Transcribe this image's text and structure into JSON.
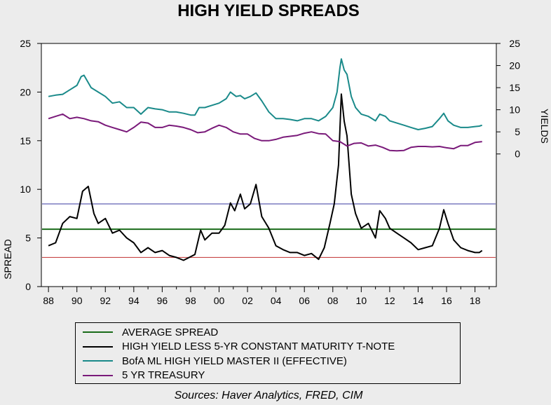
{
  "chart_data": {
    "type": "line",
    "title": "HIGH YIELD SPREADS",
    "source": "Sources:  Haver Analytics, FRED, CIM",
    "left_axis": {
      "label": "SPREAD",
      "range": [
        0,
        25
      ],
      "ticks": [
        "0",
        "5",
        "10",
        "15",
        "20",
        "25"
      ]
    },
    "right_axis": {
      "label": "YIELDS",
      "range": [
        -30,
        25
      ],
      "ticks": [
        "0",
        "5",
        "10",
        "15",
        "20",
        "25"
      ]
    },
    "x_axis": {
      "range": [
        1987.5,
        2019.5
      ],
      "ticks": [
        "88",
        "90",
        "92",
        "94",
        "96",
        "98",
        "00",
        "02",
        "04",
        "06",
        "08",
        "10",
        "12",
        "14",
        "16",
        "18"
      ]
    },
    "reference_lines": [
      {
        "name": "blue-line",
        "value": 8.5,
        "color": "#3a3aa0"
      },
      {
        "name": "average-spread",
        "value": 5.9,
        "color": "#1a6b1a"
      },
      {
        "name": "red-line",
        "value": 3.0,
        "color": "#c03030"
      }
    ],
    "series": [
      {
        "name": "HIGH YIELD LESS 5-YR CONSTANT MATURITY T-NOTE",
        "axis": "left",
        "color": "#000000",
        "x": [
          1988.0,
          1988.5,
          1989.0,
          1989.5,
          1990.0,
          1990.4,
          1990.8,
          1991.2,
          1991.5,
          1992.0,
          1992.5,
          1993.0,
          1993.5,
          1994.0,
          1994.5,
          1995.0,
          1995.5,
          1996.0,
          1996.5,
          1997.0,
          1997.5,
          1997.9,
          1998.3,
          1998.7,
          1999.0,
          1999.5,
          2000.0,
          2000.4,
          2000.8,
          2001.1,
          2001.5,
          2001.8,
          2002.2,
          2002.6,
          2003.0,
          2003.5,
          2004.0,
          2004.5,
          2005.0,
          2005.5,
          2006.0,
          2006.5,
          2007.0,
          2007.4,
          2007.8,
          2008.1,
          2008.4,
          2008.6,
          2008.8,
          2009.0,
          2009.3,
          2009.6,
          2010.0,
          2010.5,
          2011.0,
          2011.3,
          2011.7,
          2012.0,
          2012.5,
          2013.0,
          2013.5,
          2014.0,
          2014.5,
          2015.0,
          2015.5,
          2015.8,
          2016.1,
          2016.5,
          2017.0,
          2017.5,
          2018.0,
          2018.3,
          2018.5
        ],
        "y": [
          4.2,
          4.5,
          6.5,
          7.2,
          7.0,
          9.8,
          10.3,
          7.5,
          6.5,
          7.0,
          5.5,
          5.8,
          5.0,
          4.5,
          3.5,
          4.0,
          3.5,
          3.7,
          3.2,
          3.0,
          2.7,
          3.0,
          3.3,
          5.8,
          4.8,
          5.5,
          5.5,
          6.3,
          8.6,
          7.8,
          9.5,
          8.0,
          8.5,
          10.5,
          7.2,
          6.0,
          4.2,
          3.8,
          3.5,
          3.5,
          3.2,
          3.4,
          2.8,
          4.0,
          6.5,
          8.5,
          12.5,
          19.8,
          17.0,
          15.5,
          9.5,
          7.5,
          6.0,
          6.5,
          5.0,
          7.8,
          7.0,
          6.0,
          5.5,
          5.0,
          4.5,
          3.8,
          4.0,
          4.2,
          6.0,
          7.9,
          6.5,
          4.8,
          4.0,
          3.7,
          3.5,
          3.5,
          3.7
        ]
      },
      {
        "name": "BofA ML HIGH YIELD MASTER II (EFFECTIVE)",
        "axis": "right",
        "color": "#1a8a8a",
        "x": [
          1988.0,
          1988.5,
          1989.0,
          1989.5,
          1990.0,
          1990.3,
          1990.5,
          1991.0,
          1991.5,
          1992.0,
          1992.5,
          1993.0,
          1993.5,
          1994.0,
          1994.5,
          1995.0,
          1995.5,
          1996.0,
          1996.5,
          1997.0,
          1997.5,
          1998.0,
          1998.3,
          1998.6,
          1999.0,
          1999.5,
          2000.0,
          2000.5,
          2000.8,
          2001.2,
          2001.5,
          2001.8,
          2002.2,
          2002.6,
          2003.0,
          2003.5,
          2004.0,
          2004.5,
          2005.0,
          2005.5,
          2006.0,
          2006.5,
          2007.0,
          2007.5,
          2008.0,
          2008.3,
          2008.5,
          2008.6,
          2008.8,
          2009.0,
          2009.3,
          2009.6,
          2010.0,
          2010.5,
          2011.0,
          2011.3,
          2011.7,
          2012.0,
          2012.5,
          2013.0,
          2013.5,
          2014.0,
          2014.5,
          2015.0,
          2015.5,
          2015.8,
          2016.1,
          2016.5,
          2017.0,
          2017.5,
          2018.0,
          2018.3,
          2018.5
        ],
        "y": [
          13.0,
          13.3,
          13.5,
          14.5,
          15.5,
          17.5,
          17.8,
          15.0,
          14.0,
          13.0,
          11.5,
          11.8,
          10.5,
          10.5,
          9.0,
          10.5,
          10.2,
          10.0,
          9.5,
          9.5,
          9.2,
          8.8,
          8.8,
          10.5,
          10.5,
          11.0,
          11.5,
          12.5,
          14.0,
          13.0,
          13.2,
          12.5,
          13.0,
          13.8,
          12.0,
          9.5,
          8.0,
          8.0,
          7.8,
          7.5,
          8.0,
          8.0,
          7.5,
          8.5,
          10.5,
          14.0,
          19.5,
          21.5,
          19.0,
          18.0,
          13.0,
          10.5,
          9.0,
          8.5,
          7.5,
          9.0,
          8.5,
          7.5,
          7.0,
          6.5,
          6.0,
          5.5,
          5.8,
          6.2,
          8.0,
          9.2,
          7.5,
          6.5,
          6.0,
          6.0,
          6.2,
          6.3,
          6.5
        ]
      },
      {
        "name": "5 YR TREASURY",
        "axis": "right",
        "color": "#7a1a7a",
        "x": [
          1988.0,
          1988.5,
          1989.0,
          1989.5,
          1990.0,
          1990.5,
          1991.0,
          1991.5,
          1992.0,
          1992.5,
          1993.0,
          1993.5,
          1994.0,
          1994.5,
          1995.0,
          1995.5,
          1996.0,
          1996.5,
          1997.0,
          1997.5,
          1998.0,
          1998.5,
          1999.0,
          1999.5,
          2000.0,
          2000.5,
          2001.0,
          2001.5,
          2002.0,
          2002.5,
          2003.0,
          2003.5,
          2004.0,
          2004.5,
          2005.0,
          2005.5,
          2006.0,
          2006.5,
          2007.0,
          2007.5,
          2008.0,
          2008.5,
          2009.0,
          2009.5,
          2010.0,
          2010.5,
          2011.0,
          2011.5,
          2012.0,
          2012.5,
          2013.0,
          2013.5,
          2014.0,
          2014.5,
          2015.0,
          2015.5,
          2016.0,
          2016.5,
          2017.0,
          2017.5,
          2018.0,
          2018.5
        ],
        "y": [
          8.0,
          8.5,
          9.0,
          8.0,
          8.3,
          8.0,
          7.5,
          7.3,
          6.5,
          6.0,
          5.5,
          5.0,
          6.0,
          7.2,
          7.0,
          6.0,
          6.0,
          6.5,
          6.3,
          6.0,
          5.5,
          4.8,
          5.0,
          5.8,
          6.5,
          6.0,
          5.0,
          4.5,
          4.5,
          3.5,
          3.0,
          3.0,
          3.3,
          3.8,
          4.0,
          4.2,
          4.7,
          5.0,
          4.6,
          4.5,
          3.0,
          2.8,
          1.8,
          2.4,
          2.5,
          1.8,
          2.0,
          1.5,
          0.8,
          0.7,
          0.8,
          1.5,
          1.7,
          1.7,
          1.6,
          1.7,
          1.4,
          1.2,
          1.9,
          1.9,
          2.6,
          2.8
        ]
      }
    ],
    "legend": [
      {
        "label": "AVERAGE SPREAD",
        "color": "#1a6b1a"
      },
      {
        "label": "HIGH YIELD LESS 5-YR CONSTANT MATURITY T-NOTE",
        "color": "#000000"
      },
      {
        "label": "BofA ML HIGH YIELD MASTER II (EFFECTIVE)",
        "color": "#1a8a8a"
      },
      {
        "label": "5 YR TREASURY",
        "color": "#7a1a7a"
      }
    ]
  }
}
